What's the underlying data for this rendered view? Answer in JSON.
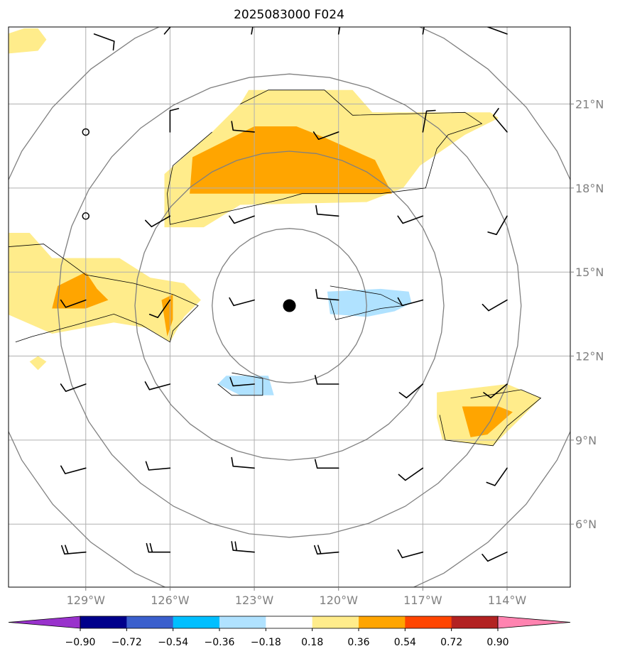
{
  "chart_data": {
    "type": "contour",
    "title": "2025083000 F024",
    "x_tick_labels": [
      "129°W",
      "126°W",
      "123°W",
      "120°W",
      "117°W",
      "114°W"
    ],
    "x_ticks": [
      -129,
      -126,
      -123,
      -120,
      -117,
      -114
    ],
    "y_tick_labels": [
      "6°N",
      "9°N",
      "12°N",
      "15°N",
      "18°N",
      "21°N"
    ],
    "y_ticks": [
      6,
      9,
      12,
      15,
      18,
      21
    ],
    "xlim": [
      -131.75,
      -111.75
    ],
    "ylim": [
      3.75,
      23.75
    ],
    "grid": true,
    "center": {
      "lon": -121.75,
      "lat": 13.8
    },
    "range_rings_deg": [
      2.75,
      5.5,
      8.25,
      11.0
    ],
    "colorbar": {
      "ticks": [
        "−0.90",
        "−0.72",
        "−0.54",
        "−0.36",
        "−0.18",
        "0.18",
        "0.36",
        "0.54",
        "0.72",
        "0.90"
      ],
      "colors": [
        "#9932CC",
        "#00008B",
        "#3A5FCD",
        "#00BFFF",
        "#B0E2FF",
        "#FFFFFF",
        "#FFEC8B",
        "#FFA500",
        "#FF4500",
        "#B22222",
        "#FF83B0"
      ],
      "orientation": "horizontal",
      "extend": "both"
    },
    "filled_regions": [
      {
        "level": "0.18–0.36",
        "color": "#FFEC8B",
        "points": [
          [
            -121.5,
            21.5
          ],
          [
            -119.5,
            21.5
          ],
          [
            -118.8,
            20.7
          ],
          [
            -114.6,
            20.7
          ],
          [
            -114.3,
            20.5
          ],
          [
            -115.5,
            19.9
          ],
          [
            -117.1,
            18.8
          ],
          [
            -117.7,
            18.0
          ],
          [
            -119.0,
            17.5
          ],
          [
            -123.5,
            17.4
          ],
          [
            -124.8,
            16.6
          ],
          [
            -126.2,
            16.6
          ],
          [
            -126.2,
            18.5
          ],
          [
            -124.5,
            20.0
          ],
          [
            -123.5,
            21.0
          ],
          [
            -123.2,
            21.5
          ]
        ]
      },
      {
        "level": "0.36–0.54",
        "color": "#FFA500",
        "points": [
          [
            -123.0,
            20.2
          ],
          [
            -121.5,
            20.2
          ],
          [
            -120.5,
            19.8
          ],
          [
            -118.7,
            19.0
          ],
          [
            -118.1,
            17.8
          ],
          [
            -125.3,
            17.8
          ],
          [
            -125.2,
            19.1
          ]
        ]
      },
      {
        "level": "0.18–0.36",
        "color": "#FFEC8B",
        "points": [
          [
            -131.8,
            16.4
          ],
          [
            -131.0,
            16.4
          ],
          [
            -130.2,
            15.5
          ],
          [
            -127.8,
            15.5
          ],
          [
            -126.7,
            14.8
          ],
          [
            -125.5,
            14.6
          ],
          [
            -124.9,
            14.0
          ],
          [
            -125.5,
            13.4
          ],
          [
            -126.0,
            12.5
          ],
          [
            -126.8,
            13.0
          ],
          [
            -128.0,
            13.2
          ],
          [
            -130.2,
            12.8
          ],
          [
            -131.8,
            13.5
          ]
        ]
      },
      {
        "level": "0.36–0.54",
        "color": "#FFA500",
        "points": [
          [
            -130.0,
            14.5
          ],
          [
            -129.0,
            15.0
          ],
          [
            -128.6,
            14.4
          ],
          [
            -128.2,
            14.0
          ],
          [
            -129.0,
            13.7
          ],
          [
            -130.2,
            13.7
          ]
        ]
      },
      {
        "level": "0.36–0.54",
        "color": "#FFA500",
        "points": [
          [
            -126.3,
            14.0
          ],
          [
            -125.9,
            14.2
          ],
          [
            -125.9,
            13.3
          ],
          [
            -126.1,
            12.7
          ]
        ]
      },
      {
        "level": "0.18–0.36",
        "color": "#FFEC8B",
        "points": [
          [
            -131.8,
            23.5
          ],
          [
            -131.2,
            23.7
          ],
          [
            -130.7,
            23.7
          ],
          [
            -130.4,
            23.3
          ],
          [
            -130.7,
            22.9
          ],
          [
            -131.8,
            22.8
          ]
        ]
      },
      {
        "level": "0.18–0.36",
        "color": "#FFEC8B",
        "points": [
          [
            -130.7,
            12.0
          ],
          [
            -130.4,
            11.8
          ],
          [
            -130.7,
            11.5
          ],
          [
            -131.0,
            11.8
          ]
        ]
      },
      {
        "level": "0.18–0.36",
        "color": "#FFEC8B",
        "points": [
          [
            -116.5,
            10.7
          ],
          [
            -114.0,
            11.0
          ],
          [
            -112.8,
            10.5
          ],
          [
            -113.8,
            9.5
          ],
          [
            -114.5,
            8.8
          ],
          [
            -116.3,
            9.0
          ],
          [
            -116.5,
            9.8
          ]
        ]
      },
      {
        "level": "0.36–0.54",
        "color": "#FFA500",
        "points": [
          [
            -115.6,
            10.2
          ],
          [
            -114.3,
            10.2
          ],
          [
            -113.8,
            10.0
          ],
          [
            -114.7,
            9.2
          ],
          [
            -115.3,
            9.1
          ]
        ]
      },
      {
        "level": "-0.36–-0.18",
        "color": "#B0E2FF",
        "points": [
          [
            -120.4,
            14.3
          ],
          [
            -118.5,
            14.4
          ],
          [
            -117.5,
            14.3
          ],
          [
            -117.4,
            13.9
          ],
          [
            -118.0,
            13.6
          ],
          [
            -119.0,
            13.4
          ],
          [
            -120.3,
            13.5
          ]
        ]
      },
      {
        "level": "-0.36–-0.18",
        "color": "#B0E2FF",
        "points": [
          [
            -124.0,
            11.3
          ],
          [
            -122.5,
            11.3
          ],
          [
            -122.3,
            10.6
          ],
          [
            -123.5,
            10.6
          ],
          [
            -124.3,
            11.0
          ]
        ]
      }
    ],
    "contour_lines": [
      [
        [
          -123.5,
          21.0
        ],
        [
          -122.5,
          21.5
        ],
        [
          -120.5,
          21.5
        ],
        [
          -119.5,
          20.6
        ],
        [
          -115.5,
          20.7
        ],
        [
          -114.9,
          20.3
        ],
        [
          -116.1,
          19.9
        ],
        [
          -116.5,
          19.4
        ],
        [
          -116.9,
          18.0
        ],
        [
          -118.5,
          17.8
        ],
        [
          -121.3,
          17.8
        ],
        [
          -122.0,
          17.6
        ],
        [
          -126.0,
          16.7
        ],
        [
          -126.1,
          17.8
        ],
        [
          -125.9,
          18.8
        ],
        [
          -124.5,
          20.0
        ]
      ],
      [
        [
          -131.8,
          15.9
        ],
        [
          -130.5,
          16.0
        ],
        [
          -129.0,
          14.9
        ],
        [
          -127.3,
          14.6
        ],
        [
          -125.9,
          14.2
        ],
        [
          -125.0,
          13.8
        ],
        [
          -125.9,
          12.9
        ],
        [
          -126.0,
          12.5
        ],
        [
          -127.0,
          13.1
        ],
        [
          -128.0,
          13.5
        ],
        [
          -129.4,
          13.1
        ],
        [
          -130.9,
          12.7
        ],
        [
          -131.5,
          12.5
        ]
      ],
      [
        [
          -115.3,
          10.5
        ],
        [
          -113.5,
          10.8
        ],
        [
          -112.8,
          10.5
        ],
        [
          -114.0,
          9.5
        ],
        [
          -114.5,
          8.8
        ],
        [
          -116.2,
          9.0
        ],
        [
          -116.4,
          9.9
        ]
      ],
      [
        [
          -120.3,
          14.5
        ],
        [
          -118.5,
          14.2
        ],
        [
          -117.7,
          13.8
        ],
        [
          -118.5,
          13.7
        ],
        [
          -120.1,
          13.3
        ],
        [
          -120.3,
          14.0
        ]
      ],
      [
        [
          -123.8,
          11.4
        ],
        [
          -122.7,
          11.2
        ],
        [
          -122.7,
          10.6
        ],
        [
          -123.8,
          10.6
        ],
        [
          -124.3,
          11.0
        ]
      ]
    ],
    "markers": [
      {
        "type": "storm-center",
        "lon": -121.75,
        "lat": 13.8
      },
      {
        "type": "calm-circle",
        "lon": -129.0,
        "lat": 20.0
      },
      {
        "type": "calm-circle",
        "lon": -129.0,
        "lat": 17.0
      }
    ],
    "wind_barbs": [
      {
        "lon": -128.7,
        "lat": 23.5,
        "dir": 110,
        "barbs": 1
      },
      {
        "lon": -126.2,
        "lat": 23.5,
        "dir": 40,
        "barbs": 1
      },
      {
        "lon": -123.1,
        "lat": 23.5,
        "dir": 10,
        "barbs": 1
      },
      {
        "lon": -120.0,
        "lat": 23.5,
        "dir": 10,
        "barbs": 1
      },
      {
        "lon": -117.0,
        "lat": 23.5,
        "dir": 10,
        "barbs": 1
      },
      {
        "lon": -114.0,
        "lat": 23.5,
        "dir": 290,
        "barbs": 1
      },
      {
        "lon": -126.0,
        "lat": 20.0,
        "dir": 0,
        "barbs": 1
      },
      {
        "lon": -123.0,
        "lat": 20.0,
        "dir": 275,
        "barbs": 1
      },
      {
        "lon": -120.0,
        "lat": 20.0,
        "dir": 250,
        "barbs": 1
      },
      {
        "lon": -117.0,
        "lat": 20.0,
        "dir": 10,
        "barbs": 1
      },
      {
        "lon": -114.0,
        "lat": 20.0,
        "dir": 320,
        "barbs": 1
      },
      {
        "lon": -126.0,
        "lat": 17.0,
        "dir": 240,
        "barbs": 1
      },
      {
        "lon": -123.0,
        "lat": 17.0,
        "dir": 250,
        "barbs": 1
      },
      {
        "lon": -120.0,
        "lat": 17.0,
        "dir": 275,
        "barbs": 1
      },
      {
        "lon": -117.0,
        "lat": 17.0,
        "dir": 250,
        "barbs": 1
      },
      {
        "lon": -114.0,
        "lat": 17.0,
        "dir": 210,
        "barbs": 1
      },
      {
        "lon": -129.0,
        "lat": 14.0,
        "dir": 250,
        "barbs": 1
      },
      {
        "lon": -126.0,
        "lat": 14.0,
        "dir": 215,
        "barbs": 1
      },
      {
        "lon": -123.0,
        "lat": 14.0,
        "dir": 255,
        "barbs": 1
      },
      {
        "lon": -120.0,
        "lat": 14.0,
        "dir": 275,
        "barbs": 1
      },
      {
        "lon": -117.0,
        "lat": 14.0,
        "dir": 255,
        "barbs": 1
      },
      {
        "lon": -114.0,
        "lat": 14.0,
        "dir": 240,
        "barbs": 1
      },
      {
        "lon": -129.0,
        "lat": 11.0,
        "dir": 250,
        "barbs": 1
      },
      {
        "lon": -126.0,
        "lat": 11.0,
        "dir": 255,
        "barbs": 1
      },
      {
        "lon": -123.0,
        "lat": 11.0,
        "dir": 265,
        "barbs": 1
      },
      {
        "lon": -120.0,
        "lat": 11.0,
        "dir": 270,
        "barbs": 1
      },
      {
        "lon": -117.0,
        "lat": 11.0,
        "dir": 230,
        "barbs": 1
      },
      {
        "lon": -114.0,
        "lat": 11.0,
        "dir": 230,
        "barbs": 1
      },
      {
        "lon": -129.0,
        "lat": 8.0,
        "dir": 255,
        "barbs": 1
      },
      {
        "lon": -126.0,
        "lat": 8.0,
        "dir": 265,
        "barbs": 1
      },
      {
        "lon": -123.0,
        "lat": 8.0,
        "dir": 275,
        "barbs": 1
      },
      {
        "lon": -120.0,
        "lat": 8.0,
        "dir": 270,
        "barbs": 1
      },
      {
        "lon": -117.0,
        "lat": 8.0,
        "dir": 235,
        "barbs": 1
      },
      {
        "lon": -114.0,
        "lat": 8.0,
        "dir": 215,
        "barbs": 1
      },
      {
        "lon": -129.0,
        "lat": 5.0,
        "dir": 265,
        "barbs": 2
      },
      {
        "lon": -126.0,
        "lat": 5.0,
        "dir": 270,
        "barbs": 2
      },
      {
        "lon": -123.0,
        "lat": 5.0,
        "dir": 275,
        "barbs": 2
      },
      {
        "lon": -120.0,
        "lat": 5.0,
        "dir": 265,
        "barbs": 2
      },
      {
        "lon": -117.0,
        "lat": 5.0,
        "dir": 255,
        "barbs": 1
      },
      {
        "lon": -114.0,
        "lat": 5.0,
        "dir": 245,
        "barbs": 1
      }
    ]
  }
}
